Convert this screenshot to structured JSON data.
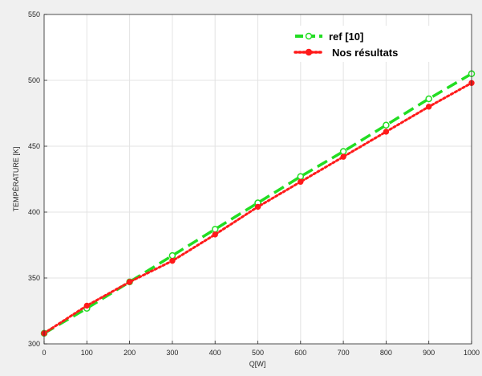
{
  "chart_data": {
    "type": "line",
    "title": "",
    "xlabel": "Q[W]",
    "ylabel": "TEMPÉRATURE [K]",
    "xlim": [
      0,
      1000
    ],
    "ylim": [
      300,
      550
    ],
    "xticks": [
      0,
      100,
      200,
      300,
      400,
      500,
      600,
      700,
      800,
      900,
      1000
    ],
    "yticks": [
      300,
      350,
      400,
      450,
      500,
      550
    ],
    "grid": true,
    "legend_position": "top-right",
    "series": [
      {
        "name": "ref [10]",
        "color": "#22dd22",
        "line_style": "dashed",
        "marker": "open-circle",
        "x": [
          0,
          100,
          200,
          300,
          400,
          500,
          600,
          700,
          800,
          900,
          1000
        ],
        "y": [
          308,
          327,
          347,
          367,
          387,
          407,
          427,
          446,
          466,
          486,
          505
        ]
      },
      {
        "name": "Nos résultats",
        "color": "#ff1a1a",
        "line_style": "dotted",
        "marker": "filled-circle",
        "x": [
          0,
          100,
          200,
          300,
          400,
          500,
          600,
          700,
          800,
          900,
          1000
        ],
        "y": [
          308,
          329,
          347,
          363,
          383,
          404,
          423,
          442,
          461,
          480,
          498
        ]
      }
    ]
  }
}
